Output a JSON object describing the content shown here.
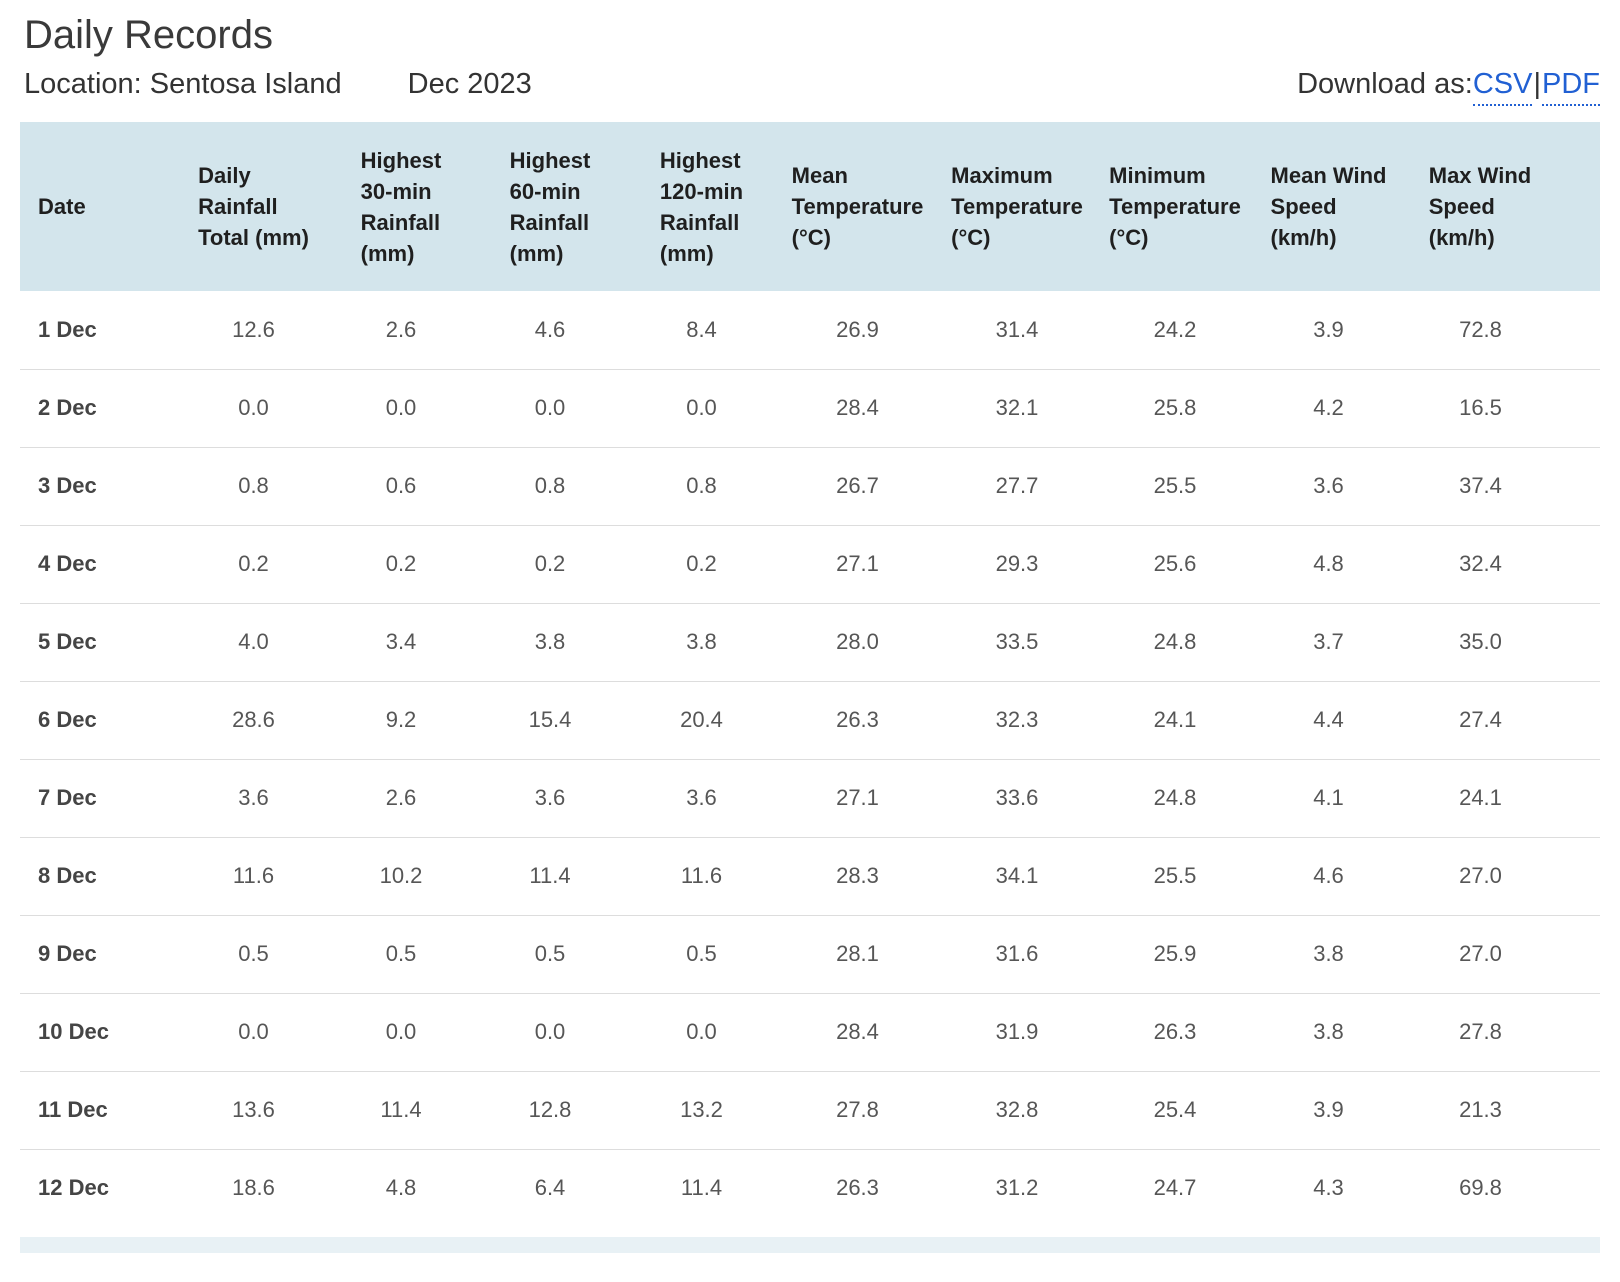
{
  "page": {
    "title": "Daily Records",
    "location_label": "Location:",
    "location_value": "Sentosa Island",
    "month": "Dec 2023",
    "download_label": "Download as:",
    "download_links": [
      "CSV",
      "PDF"
    ],
    "link_separator": "|"
  },
  "colors": {
    "header_bg": "#d3e5ec",
    "link_blue": "#2160d3",
    "row_divider": "#dddddd",
    "title_text": "#3a3a3a",
    "value_text": "#565656"
  },
  "table": {
    "columns": [
      {
        "key": "date",
        "label": "Date"
      },
      {
        "key": "daily-rainfall-total",
        "label": "Daily\nRainfall\nTotal (mm)"
      },
      {
        "key": "highest-30min-rainfall",
        "label": "Highest\n30-min\nRainfall\n(mm)"
      },
      {
        "key": "highest-60min-rainfall",
        "label": "Highest\n60-min\nRainfall\n(mm)"
      },
      {
        "key": "highest-120min-rainfall",
        "label": "Highest\n120-min\nRainfall\n(mm)"
      },
      {
        "key": "mean-temperature",
        "label": "Mean\nTemperature\n(°C)"
      },
      {
        "key": "maximum-temperature",
        "label": "Maximum\nTemperature\n(°C)"
      },
      {
        "key": "minimum-temperature",
        "label": "Minimum\nTemperature\n(°C)"
      },
      {
        "key": "mean-wind-speed",
        "label": "Mean Wind\nSpeed\n(km/h)"
      },
      {
        "key": "max-wind-speed",
        "label": "Max Wind\nSpeed\n(km/h)"
      }
    ],
    "rows": [
      {
        "date": "1 Dec",
        "values": [
          "12.6",
          "2.6",
          "4.6",
          "8.4",
          "26.9",
          "31.4",
          "24.2",
          "3.9",
          "72.8"
        ]
      },
      {
        "date": "2 Dec",
        "values": [
          "0.0",
          "0.0",
          "0.0",
          "0.0",
          "28.4",
          "32.1",
          "25.8",
          "4.2",
          "16.5"
        ]
      },
      {
        "date": "3 Dec",
        "values": [
          "0.8",
          "0.6",
          "0.8",
          "0.8",
          "26.7",
          "27.7",
          "25.5",
          "3.6",
          "37.4"
        ]
      },
      {
        "date": "4 Dec",
        "values": [
          "0.2",
          "0.2",
          "0.2",
          "0.2",
          "27.1",
          "29.3",
          "25.6",
          "4.8",
          "32.4"
        ]
      },
      {
        "date": "5 Dec",
        "values": [
          "4.0",
          "3.4",
          "3.8",
          "3.8",
          "28.0",
          "33.5",
          "24.8",
          "3.7",
          "35.0"
        ]
      },
      {
        "date": "6 Dec",
        "values": [
          "28.6",
          "9.2",
          "15.4",
          "20.4",
          "26.3",
          "32.3",
          "24.1",
          "4.4",
          "27.4"
        ]
      },
      {
        "date": "7 Dec",
        "values": [
          "3.6",
          "2.6",
          "3.6",
          "3.6",
          "27.1",
          "33.6",
          "24.8",
          "4.1",
          "24.1"
        ]
      },
      {
        "date": "8 Dec",
        "values": [
          "11.6",
          "10.2",
          "11.4",
          "11.6",
          "28.3",
          "34.1",
          "25.5",
          "4.6",
          "27.0"
        ]
      },
      {
        "date": "9 Dec",
        "values": [
          "0.5",
          "0.5",
          "0.5",
          "0.5",
          "28.1",
          "31.6",
          "25.9",
          "3.8",
          "27.0"
        ]
      },
      {
        "date": "10 Dec",
        "values": [
          "0.0",
          "0.0",
          "0.0",
          "0.0",
          "28.4",
          "31.9",
          "26.3",
          "3.8",
          "27.8"
        ]
      },
      {
        "date": "11 Dec",
        "values": [
          "13.6",
          "11.4",
          "12.8",
          "13.2",
          "27.8",
          "32.8",
          "25.4",
          "3.9",
          "21.3"
        ]
      },
      {
        "date": "12 Dec",
        "values": [
          "18.6",
          "4.8",
          "6.4",
          "11.4",
          "26.3",
          "31.2",
          "24.7",
          "4.3",
          "69.8"
        ]
      }
    ]
  }
}
